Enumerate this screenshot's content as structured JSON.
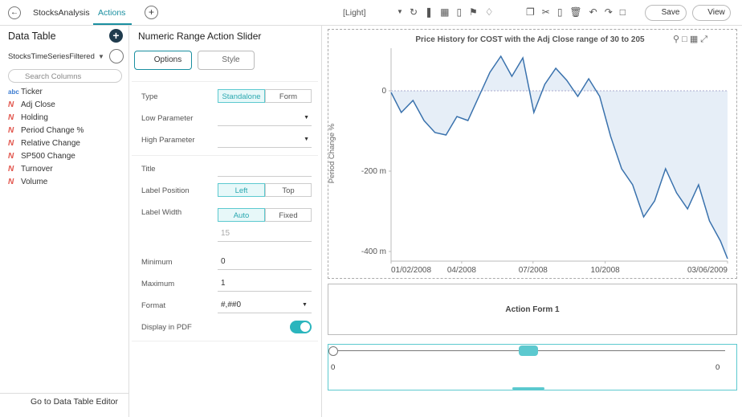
{
  "top_bar": {
    "app": "StocksAnalysis",
    "tab": "Actions",
    "theme": "[Light]",
    "save": "Save",
    "view": "View"
  },
  "data_table": {
    "title": "Data Table",
    "source": "StocksTimeSeriesFiltered",
    "search_placeholder": "Search Columns",
    "columns": [
      {
        "icon": "abc",
        "name": "Ticker"
      },
      {
        "icon": "N",
        "name": "Adj Close"
      },
      {
        "icon": "N",
        "name": "Holding"
      },
      {
        "icon": "N",
        "name": "Period Change %"
      },
      {
        "icon": "N",
        "name": "Relative Change"
      },
      {
        "icon": "N",
        "name": "SP500 Change"
      },
      {
        "icon": "N",
        "name": "Turnover"
      },
      {
        "icon": "N",
        "name": "Volume"
      }
    ],
    "footer": "Go to Data Table Editor"
  },
  "settings": {
    "title": "Numeric Range Action Slider",
    "tabs": [
      "Options",
      "Style"
    ],
    "type": {
      "label": "Type",
      "options": [
        "Standalone",
        "Form"
      ]
    },
    "low_parameter": {
      "label": "Low Parameter"
    },
    "high_parameter": {
      "label": "High Parameter"
    },
    "title_field": {
      "label": "Title"
    },
    "label_position": {
      "label": "Label Position",
      "options": [
        "Left",
        "Top"
      ]
    },
    "label_width": {
      "label": "Label Width",
      "options": [
        "Auto",
        "Fixed"
      ],
      "value": "15"
    },
    "minimum": {
      "label": "Minimum",
      "value": "0"
    },
    "maximum": {
      "label": "Maximum",
      "value": "1"
    },
    "format": {
      "label": "Format",
      "value": "#,##0"
    },
    "display_in_pdf": {
      "label": "Display in PDF",
      "on": true
    }
  },
  "chart_data": {
    "type": "line",
    "title": "Price History for COST with the Adj Close range of 30 to 205",
    "y_label": "Period Change %",
    "color": "#3a72ad",
    "area_color": "#e6eef7",
    "x": [
      "2008-01-02",
      "2008-01-15",
      "2008-01-30",
      "2008-02-13",
      "2008-02-27",
      "2008-03-12",
      "2008-03-26",
      "2008-04-09",
      "2008-04-23",
      "2008-05-07",
      "2008-05-21",
      "2008-06-04",
      "2008-06-18",
      "2008-07-02",
      "2008-07-16",
      "2008-07-30",
      "2008-08-13",
      "2008-08-27",
      "2008-09-10",
      "2008-09-24",
      "2008-10-08",
      "2008-10-22",
      "2008-11-05",
      "2008-11-19",
      "2008-12-03",
      "2008-12-17",
      "2008-12-31",
      "2009-01-14",
      "2009-01-28",
      "2009-02-11",
      "2009-02-25",
      "2009-03-06"
    ],
    "values": [
      -0.004,
      -0.054,
      -0.024,
      -0.074,
      -0.104,
      -0.11,
      -0.064,
      -0.074,
      -0.014,
      0.046,
      0.086,
      0.036,
      0.082,
      -0.054,
      0.016,
      0.056,
      0.026,
      -0.014,
      0.03,
      -0.014,
      -0.114,
      -0.194,
      -0.234,
      -0.314,
      -0.274,
      -0.194,
      -0.254,
      -0.294,
      -0.234,
      -0.324,
      -0.374,
      -0.418
    ],
    "ylim": [
      -0.424,
      0.106
    ],
    "yticks": [
      0,
      {
        "value": -0.2,
        "label": "-200 m"
      },
      {
        "value": -0.4,
        "label": "-400 m"
      }
    ],
    "xlim": [
      "2008-01-02",
      "2009-03-06"
    ],
    "xticks": [
      {
        "value": "2008-01-02",
        "label": "01/02/2008"
      },
      {
        "value": "2008-04",
        "label": "04/2008"
      },
      {
        "value": "2008-07",
        "label": "07/2008"
      },
      {
        "value": "2008-10",
        "label": "10/2008"
      },
      {
        "value": "2009-03-06",
        "label": "03/06/2009"
      }
    ]
  },
  "action_form": {
    "label": "Action Form 1"
  },
  "slider": {
    "min_label": "0",
    "max_label": "0"
  }
}
